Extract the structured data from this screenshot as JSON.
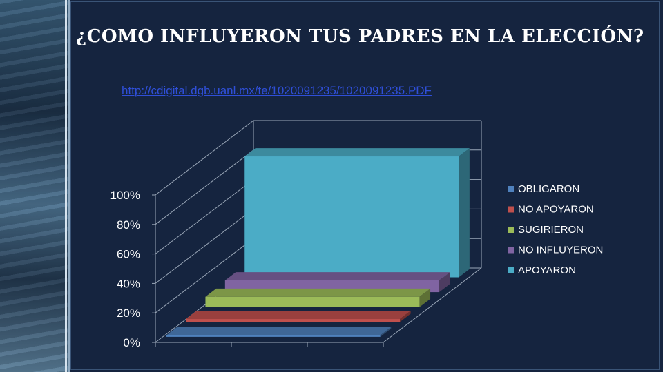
{
  "slide": {
    "title": "¿COMO INFLUYERON TUS PADRES EN LA ELECCIÓN?",
    "link": "http://cdigital.dgb.uanl.mx/te/1020091235/1020091235.PDF"
  },
  "chart_data": {
    "type": "bar",
    "style": "3d-depth",
    "title": "",
    "xlabel": "",
    "ylabel": "",
    "ylim": [
      0,
      100
    ],
    "yticks": [
      "0%",
      "20%",
      "40%",
      "60%",
      "80%",
      "100%"
    ],
    "grid": true,
    "legend_position": "right",
    "series": [
      {
        "name": "OBLIGARON",
        "value": 1,
        "color": "#4f81bd"
      },
      {
        "name": "NO APOYARON",
        "value": 2,
        "color": "#c0504d"
      },
      {
        "name": "SUGIRIERON",
        "value": 7,
        "color": "#9bbb59"
      },
      {
        "name": "NO INFLUYERON",
        "value": 8,
        "color": "#8064a2"
      },
      {
        "name": "APOYARON",
        "value": 82,
        "color": "#4bacc6"
      }
    ]
  }
}
